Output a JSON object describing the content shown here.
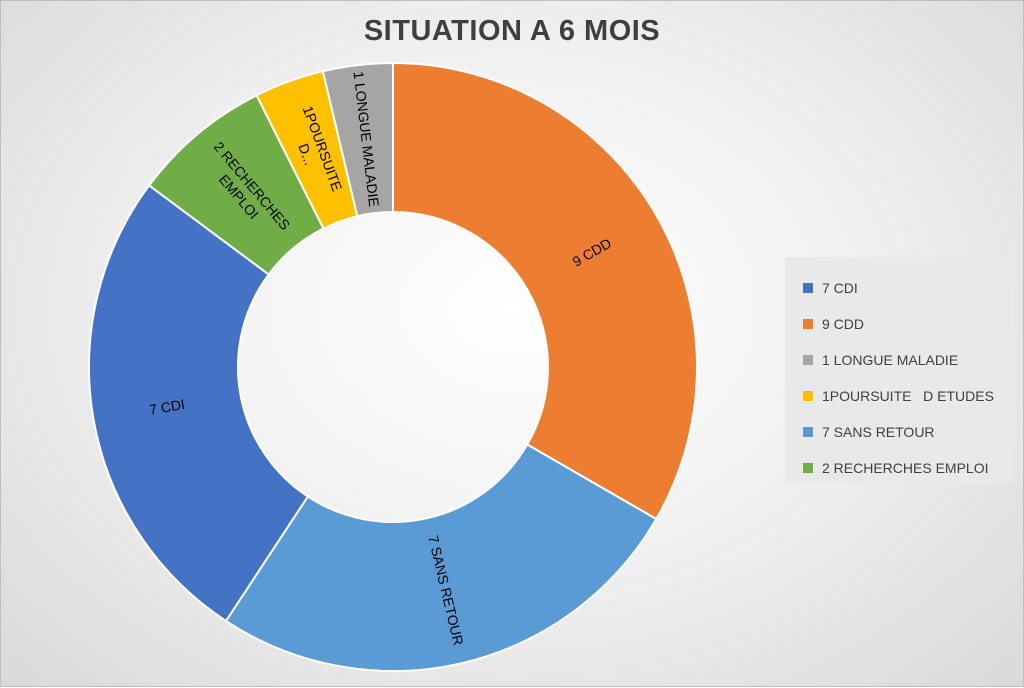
{
  "chart_data": {
    "type": "pie",
    "title": "SITUATION A 6 MOIS",
    "donut": true,
    "legend_position": "right",
    "slices": [
      {
        "label": "9 CDD",
        "value": 9,
        "color": "#ED7D31"
      },
      {
        "label": "7 SANS RETOUR",
        "value": 7,
        "color": "#5B9BD5"
      },
      {
        "label": "7 CDI",
        "value": 7,
        "color": "#4472C4"
      },
      {
        "label": "2 RECHERCHES EMPLOI",
        "value": 2,
        "color": "#70AD47"
      },
      {
        "label": "1POURSUITE   D ETUDES",
        "value": 1,
        "color": "#FFC000"
      },
      {
        "label": "1 LONGUE MALADIE",
        "value": 1,
        "color": "#A5A5A5"
      }
    ],
    "data_labels": [
      {
        "text": "9 CDD"
      },
      {
        "text": "7 SANS RETOUR"
      },
      {
        "text": "7 CDI"
      },
      {
        "lines": [
          "2 RECHERCHES",
          "EMPLOI"
        ]
      },
      {
        "lines": [
          "1POURSUITE",
          "D..."
        ]
      },
      {
        "text": "1 LONGUE MALADIE"
      }
    ],
    "legend": [
      {
        "label": "7 CDI",
        "color": "#4472C4"
      },
      {
        "label": "9 CDD",
        "color": "#ED7D31"
      },
      {
        "label": "1 LONGUE MALADIE",
        "color": "#A5A5A5"
      },
      {
        "label": "1POURSUITE   D ETUDES",
        "color": "#FFC000"
      },
      {
        "label": "7 SANS RETOUR",
        "color": "#5B9BD5"
      },
      {
        "label": "2 RECHERCHES EMPLOI",
        "color": "#70AD47"
      }
    ]
  }
}
